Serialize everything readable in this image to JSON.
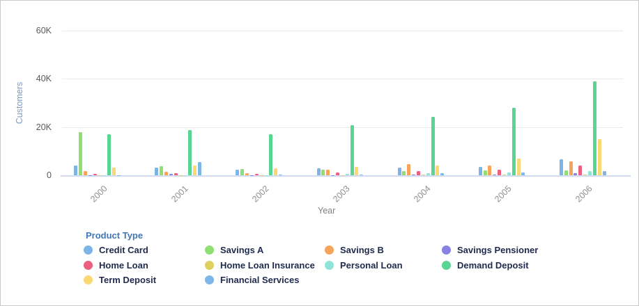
{
  "chart_data": {
    "type": "bar",
    "title": "",
    "xlabel": "Year",
    "ylabel": "Customers",
    "ylim": [
      0,
      60000
    ],
    "grid": true,
    "legend_position": "bottom",
    "categories": [
      "2000",
      "2001",
      "2002",
      "2003",
      "2004",
      "2005",
      "2006"
    ],
    "y_ticks": [
      {
        "label": "0",
        "value": 0
      },
      {
        "label": "20K",
        "value": 20000
      },
      {
        "label": "40K",
        "value": 40000
      },
      {
        "label": "60K",
        "value": 60000
      }
    ],
    "series": [
      {
        "name": "Credit Card",
        "color": "#7db4e8",
        "values": [
          4100,
          3300,
          2200,
          2900,
          3100,
          3500,
          6600
        ]
      },
      {
        "name": "Savings A",
        "color": "#8fdf72",
        "values": [
          17900,
          3700,
          2600,
          2300,
          1600,
          1900,
          2100
        ]
      },
      {
        "name": "Savings B",
        "color": "#f6a45c",
        "values": [
          1700,
          1400,
          900,
          2300,
          4600,
          4100,
          5700
        ]
      },
      {
        "name": "Savings Pensioner",
        "color": "#8681e2",
        "values": [
          100,
          600,
          100,
          100,
          200,
          300,
          900
        ]
      },
      {
        "name": "Home Loan",
        "color": "#ec5f80",
        "values": [
          500,
          900,
          500,
          1100,
          1800,
          2200,
          4000
        ]
      },
      {
        "name": "Home Loan Insurance",
        "color": "#ddd05e",
        "values": [
          100,
          100,
          50,
          100,
          300,
          150,
          200
        ]
      },
      {
        "name": "Personal Loan",
        "color": "#90e3d8",
        "values": [
          100,
          100,
          100,
          500,
          1000,
          1200,
          1600
        ]
      },
      {
        "name": "Demand Deposit",
        "color": "#58d591",
        "values": [
          16900,
          18800,
          16900,
          20700,
          24200,
          28100,
          38900
        ]
      },
      {
        "name": "Term Deposit",
        "color": "#fcd874",
        "values": [
          3300,
          4000,
          3000,
          3500,
          4000,
          6800,
          15000
        ]
      },
      {
        "name": "Financial Services",
        "color": "#7db7ea",
        "values": [
          100,
          5600,
          300,
          400,
          900,
          1100,
          1800
        ]
      }
    ]
  },
  "legend": {
    "title": "Product Type",
    "items": [
      {
        "label": "Credit Card",
        "color": "#7db4e8"
      },
      {
        "label": "Savings A",
        "color": "#8fdf72"
      },
      {
        "label": "Savings B",
        "color": "#f6a45c"
      },
      {
        "label": "Savings Pensioner",
        "color": "#8681e2"
      },
      {
        "label": "Home Loan",
        "color": "#ec5f80"
      },
      {
        "label": "Home Loan Insurance",
        "color": "#ddd05e"
      },
      {
        "label": "Personal Loan",
        "color": "#90e3d8"
      },
      {
        "label": "Demand Deposit",
        "color": "#58d591"
      },
      {
        "label": "Term Deposit",
        "color": "#fcd874"
      },
      {
        "label": "Financial Services",
        "color": "#7db7ea"
      }
    ]
  }
}
